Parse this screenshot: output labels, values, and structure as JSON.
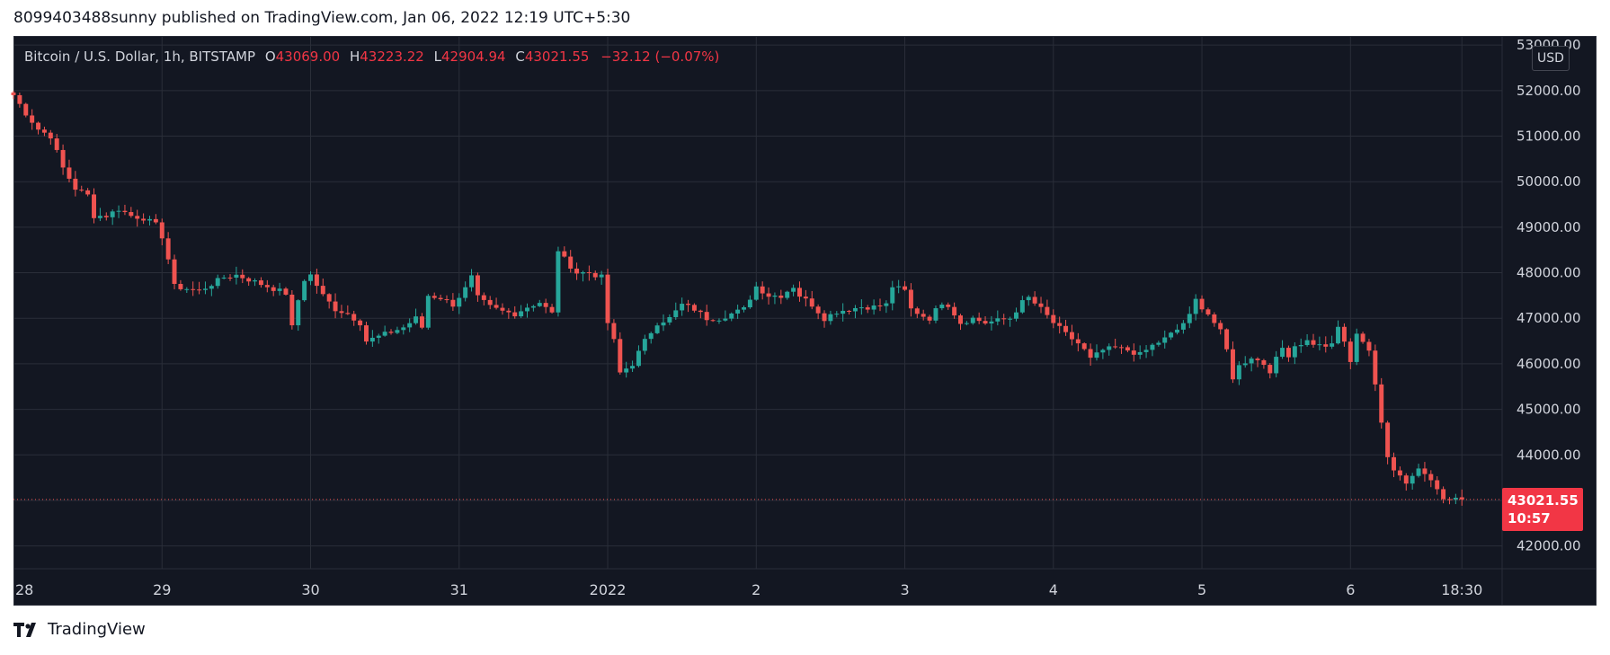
{
  "header": {
    "text": "8099403488sunny published on TradingView.com, Jan 06, 2022 12:19 UTC+5:30"
  },
  "legend": {
    "symbol": "Bitcoin / U.S. Dollar, 1h, BITSTAMP",
    "open_label": "O",
    "open": "43069.00",
    "high_label": "H",
    "high": "43223.22",
    "low_label": "L",
    "low": "42904.94",
    "close_label": "C",
    "close": "43021.55",
    "change": "−32.12 (−0.07%)"
  },
  "price_scale": {
    "currency": "USD"
  },
  "last_price": {
    "price": "43021.55",
    "countdown": "10:57",
    "value": 43021.55
  },
  "footer": {
    "brand": "TradingView"
  },
  "colors": {
    "up": "#26a69a",
    "down": "#ef5350",
    "background": "#131722",
    "grid": "#2a2e39",
    "text": "#d1d4dc"
  },
  "chart_data": {
    "type": "candlestick",
    "interval": "1h",
    "ylim": [
      41500,
      53200
    ],
    "y_ticks": [
      42000,
      43000,
      44000,
      45000,
      46000,
      47000,
      48000,
      49000,
      50000,
      51000,
      52000,
      53000
    ],
    "y_tick_labels": [
      "42000.00",
      "43000.00",
      "44000.00",
      "45000.00",
      "46000.00",
      "47000.00",
      "48000.00",
      "49000.00",
      "50000.00",
      "51000.00",
      "52000.00",
      "53000.00"
    ],
    "x_ticks": [
      {
        "t": 0,
        "label": "28"
      },
      {
        "t": 24,
        "label": "29"
      },
      {
        "t": 48,
        "label": "30"
      },
      {
        "t": 72,
        "label": "31"
      },
      {
        "t": 96,
        "label": "2022"
      },
      {
        "t": 120,
        "label": "2"
      },
      {
        "t": 144,
        "label": "3"
      },
      {
        "t": 168,
        "label": "4"
      },
      {
        "t": 192,
        "label": "5"
      },
      {
        "t": 216,
        "label": "6"
      },
      {
        "t": 234,
        "label": "18:30"
      }
    ],
    "x_range": [
      0,
      240.5
    ],
    "anchors": [
      [
        0,
        51900
      ],
      [
        2,
        51500
      ],
      [
        4,
        51150
      ],
      [
        6,
        51000
      ],
      [
        8,
        50300
      ],
      [
        10,
        49850
      ],
      [
        12,
        49700
      ],
      [
        13,
        49250
      ],
      [
        15,
        49250
      ],
      [
        17,
        49400
      ],
      [
        19,
        49250
      ],
      [
        21,
        49200
      ],
      [
        23,
        49050
      ],
      [
        24,
        48800
      ],
      [
        25,
        48300
      ],
      [
        26,
        47700
      ],
      [
        28,
        47650
      ],
      [
        30,
        47600
      ],
      [
        32,
        47750
      ],
      [
        34,
        47900
      ],
      [
        36,
        47950
      ],
      [
        38,
        47850
      ],
      [
        40,
        47750
      ],
      [
        42,
        47650
      ],
      [
        44,
        47550
      ],
      [
        45,
        46800
      ],
      [
        46,
        47400
      ],
      [
        47,
        47850
      ],
      [
        48,
        47950
      ],
      [
        50,
        47500
      ],
      [
        52,
        47200
      ],
      [
        54,
        47100
      ],
      [
        56,
        46900
      ],
      [
        57,
        46500
      ],
      [
        59,
        46600
      ],
      [
        61,
        46700
      ],
      [
        63,
        46800
      ],
      [
        65,
        47000
      ],
      [
        66,
        46800
      ],
      [
        67,
        47500
      ],
      [
        69,
        47450
      ],
      [
        71,
        47300
      ],
      [
        73,
        47650
      ],
      [
        74,
        47900
      ],
      [
        75,
        47450
      ],
      [
        77,
        47250
      ],
      [
        79,
        47150
      ],
      [
        81,
        47100
      ],
      [
        83,
        47250
      ],
      [
        85,
        47350
      ],
      [
        87,
        47100
      ],
      [
        88,
        48500
      ],
      [
        89,
        48300
      ],
      [
        91,
        48000
      ],
      [
        93,
        48000
      ],
      [
        95,
        47900
      ],
      [
        96,
        46900
      ],
      [
        97,
        46500
      ],
      [
        98,
        45800
      ],
      [
        100,
        46000
      ],
      [
        102,
        46500
      ],
      [
        104,
        46900
      ],
      [
        106,
        47000
      ],
      [
        108,
        47300
      ],
      [
        110,
        47200
      ],
      [
        112,
        47000
      ],
      [
        114,
        47000
      ],
      [
        116,
        47100
      ],
      [
        118,
        47200
      ],
      [
        120,
        47700
      ],
      [
        122,
        47500
      ],
      [
        124,
        47500
      ],
      [
        126,
        47700
      ],
      [
        127,
        47500
      ],
      [
        129,
        47300
      ],
      [
        131,
        47000
      ],
      [
        133,
        47150
      ],
      [
        135,
        47200
      ],
      [
        137,
        47250
      ],
      [
        139,
        47250
      ],
      [
        141,
        47300
      ],
      [
        142,
        47700
      ],
      [
        144,
        47600
      ],
      [
        145,
        47200
      ],
      [
        147,
        47050
      ],
      [
        148,
        47000
      ],
      [
        150,
        47350
      ],
      [
        151,
        47300
      ],
      [
        153,
        46900
      ],
      [
        155,
        47000
      ],
      [
        157,
        46900
      ],
      [
        159,
        46950
      ],
      [
        161,
        47000
      ],
      [
        163,
        47350
      ],
      [
        164,
        47450
      ],
      [
        166,
        47200
      ],
      [
        168,
        46900
      ],
      [
        170,
        46650
      ],
      [
        172,
        46450
      ],
      [
        173,
        46300
      ],
      [
        174,
        46100
      ],
      [
        176,
        46300
      ],
      [
        178,
        46350
      ],
      [
        180,
        46300
      ],
      [
        182,
        46200
      ],
      [
        184,
        46400
      ],
      [
        186,
        46550
      ],
      [
        188,
        46750
      ],
      [
        190,
        47050
      ],
      [
        191,
        47400
      ],
      [
        193,
        47100
      ],
      [
        195,
        46700
      ],
      [
        196,
        46300
      ],
      [
        197,
        45700
      ],
      [
        198,
        45950
      ],
      [
        200,
        46150
      ],
      [
        202,
        46000
      ],
      [
        203,
        45850
      ],
      [
        205,
        46350
      ],
      [
        206,
        46200
      ],
      [
        207,
        46400
      ],
      [
        209,
        46500
      ],
      [
        211,
        46400
      ],
      [
        213,
        46400
      ],
      [
        214,
        46800
      ],
      [
        215,
        46500
      ],
      [
        216,
        46000
      ],
      [
        217,
        46700
      ],
      [
        219,
        46300
      ],
      [
        220,
        45500
      ],
      [
        221,
        44700
      ],
      [
        222,
        44000
      ],
      [
        223,
        43700
      ],
      [
        225,
        43400
      ],
      [
        227,
        43700
      ],
      [
        229,
        43500
      ],
      [
        230,
        43300
      ],
      [
        231,
        43000
      ],
      [
        232,
        43020
      ],
      [
        233,
        43053
      ],
      [
        234,
        43021.55
      ]
    ]
  }
}
